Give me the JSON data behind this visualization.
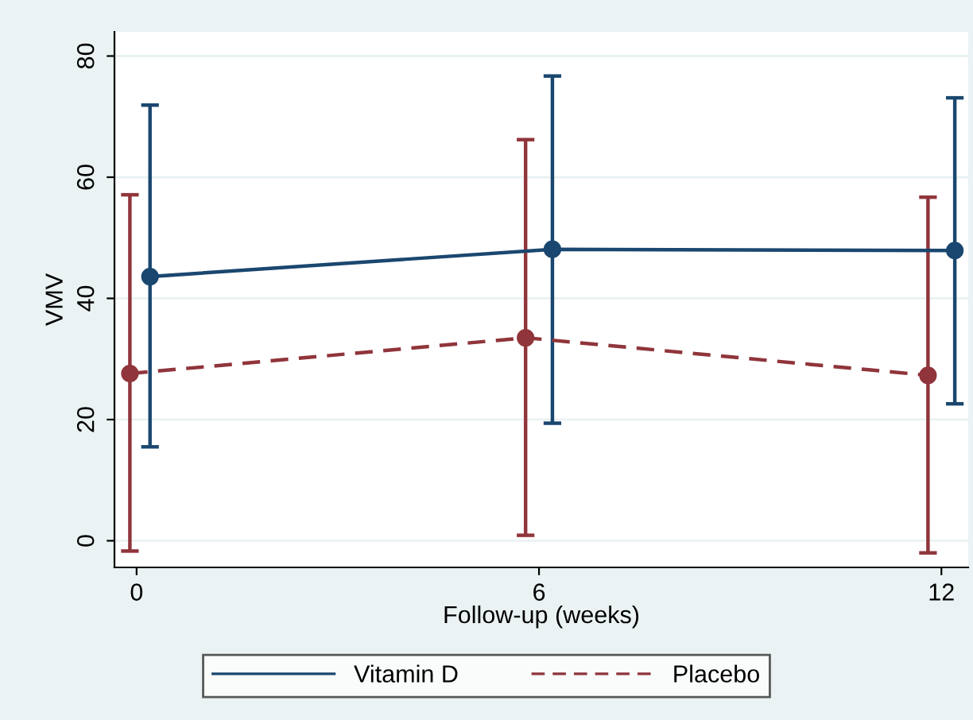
{
  "chart_data": {
    "type": "line",
    "xlabel": "Follow-up (weeks)",
    "ylabel": "VMV",
    "xlim": [
      -0.33,
      12.4
    ],
    "xticks": [
      0,
      6,
      12
    ],
    "ylim": [
      -4.4,
      84
    ],
    "yticks": [
      0,
      20,
      40,
      60,
      80
    ],
    "grid": "y",
    "legend": "bottom",
    "marker": "circle",
    "series": [
      {
        "name": "Vitamin D",
        "color": "#1a476f",
        "line_style": "solid",
        "x": [
          0.2,
          6.2,
          12.2
        ],
        "values": [
          43.6,
          48.1,
          47.9
        ],
        "errors": [
          [
            15.5,
            71.9
          ],
          [
            19.4,
            76.7
          ],
          [
            22.6,
            73.1
          ]
        ]
      },
      {
        "name": "Placebo",
        "color": "#90353b",
        "line_style": "dashed",
        "x": [
          -0.1,
          5.8,
          11.8
        ],
        "values": [
          27.6,
          33.5,
          27.3
        ],
        "errors": [
          [
            -1.7,
            57.1
          ],
          [
            0.9,
            66.2
          ],
          [
            -2.0,
            56.7
          ]
        ]
      }
    ]
  }
}
